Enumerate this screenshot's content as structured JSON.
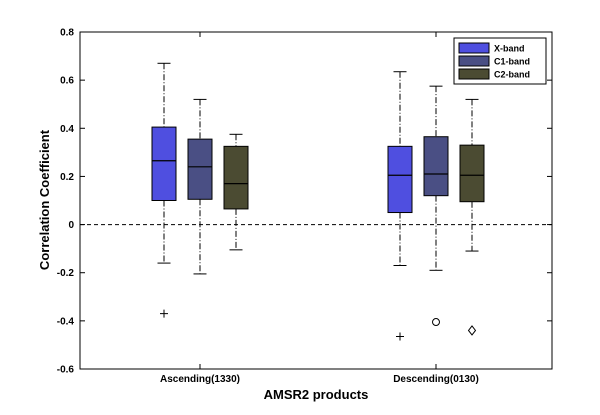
{
  "chart_data": {
    "type": "box",
    "title": "",
    "xlabel": "AMSR2 products",
    "ylabel": "Correlation Coefficient",
    "ylim": [
      -0.6,
      0.8
    ],
    "yticks": [
      -0.6,
      -0.4,
      -0.2,
      0,
      0.2,
      0.4,
      0.6,
      0.8
    ],
    "ytick_labels": [
      "-0.6",
      "-0.4",
      "-0.2",
      "0",
      "0.2",
      "0.4",
      "0.6",
      "0.8"
    ],
    "reference_line": 0,
    "grid": false,
    "legend_position": "top-right",
    "categories": [
      "Ascending(1330)",
      "Descending(0130)"
    ],
    "series": [
      {
        "name": "X-band",
        "color": "#4f4fe0",
        "boxes": [
          {
            "min": -0.16,
            "q1": 0.1,
            "median": 0.265,
            "q3": 0.405,
            "max": 0.67,
            "outliers": [
              {
                "value": -0.37,
                "marker": "plus"
              }
            ]
          },
          {
            "min": -0.17,
            "q1": 0.05,
            "median": 0.205,
            "q3": 0.325,
            "max": 0.635,
            "outliers": [
              {
                "value": -0.465,
                "marker": "plus"
              }
            ]
          }
        ]
      },
      {
        "name": "C1-band",
        "color": "#4a4f84",
        "boxes": [
          {
            "min": -0.205,
            "q1": 0.105,
            "median": 0.24,
            "q3": 0.355,
            "max": 0.52,
            "outliers": []
          },
          {
            "min": -0.19,
            "q1": 0.12,
            "median": 0.21,
            "q3": 0.365,
            "max": 0.575,
            "outliers": [
              {
                "value": -0.405,
                "marker": "circle"
              }
            ]
          }
        ]
      },
      {
        "name": "C2-band",
        "color": "#4b4b32",
        "boxes": [
          {
            "min": -0.105,
            "q1": 0.065,
            "median": 0.17,
            "q3": 0.325,
            "max": 0.375,
            "outliers": []
          },
          {
            "min": -0.11,
            "q1": 0.095,
            "median": 0.205,
            "q3": 0.33,
            "max": 0.52,
            "outliers": [
              {
                "value": -0.44,
                "marker": "diamond"
              }
            ]
          }
        ]
      }
    ]
  }
}
